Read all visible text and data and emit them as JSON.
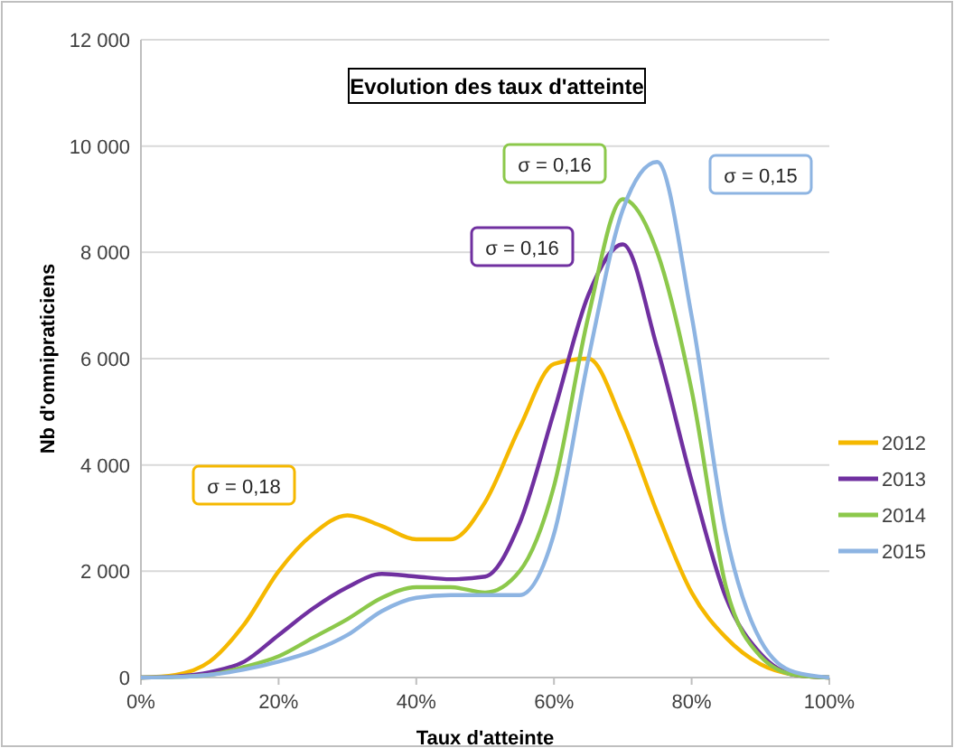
{
  "chart_data": {
    "type": "line",
    "title": "Evolution des taux d'atteinte",
    "xlabel": "Taux d'atteinte",
    "ylabel": "Nb d'omnipraticiens",
    "x": [
      0,
      5,
      10,
      15,
      20,
      25,
      30,
      35,
      40,
      45,
      50,
      55,
      60,
      65,
      70,
      75,
      80,
      85,
      90,
      95,
      100
    ],
    "series": [
      {
        "name": "2012",
        "color": "#f5b800",
        "values": [
          0,
          50,
          300,
          1000,
          2000,
          2700,
          3050,
          2850,
          2600,
          2600,
          3300,
          4700,
          5900,
          6000,
          4800,
          3100,
          1600,
          750,
          250,
          50,
          0
        ]
      },
      {
        "name": "2013",
        "color": "#7030a0",
        "values": [
          0,
          20,
          100,
          300,
          800,
          1300,
          1700,
          1950,
          1900,
          1850,
          1900,
          2900,
          5000,
          7200,
          8150,
          6200,
          3700,
          1500,
          450,
          50,
          0
        ]
      },
      {
        "name": "2014",
        "color": "#8cc84b",
        "values": [
          0,
          10,
          50,
          200,
          400,
          750,
          1100,
          1500,
          1700,
          1700,
          1600,
          2000,
          3600,
          6800,
          9000,
          8000,
          5400,
          1700,
          400,
          50,
          0
        ]
      },
      {
        "name": "2015",
        "color": "#8db4e2",
        "values": [
          0,
          10,
          50,
          150,
          300,
          500,
          800,
          1250,
          1500,
          1550,
          1550,
          1550,
          2700,
          6000,
          8800,
          9700,
          6800,
          2700,
          700,
          100,
          0
        ]
      }
    ],
    "xlim": [
      0,
      100
    ],
    "xticks": [
      {
        "value": 0,
        "label": "0%"
      },
      {
        "value": 20,
        "label": "20%"
      },
      {
        "value": 40,
        "label": "40%"
      },
      {
        "value": 60,
        "label": "60%"
      },
      {
        "value": 80,
        "label": "80%"
      },
      {
        "value": 100,
        "label": "100%"
      }
    ],
    "ylim": [
      0,
      12000
    ],
    "yticks": [
      {
        "value": 0,
        "label": "0"
      },
      {
        "value": 2000,
        "label": "2 000"
      },
      {
        "value": 4000,
        "label": "4 000"
      },
      {
        "value": 6000,
        "label": "6 000"
      },
      {
        "value": 8000,
        "label": "8 000"
      },
      {
        "value": 10000,
        "label": "10 000"
      },
      {
        "value": 12000,
        "label": "12 000"
      }
    ],
    "grid": "y",
    "legend": "right",
    "marker": "none",
    "line_style": "solid",
    "annotations": [
      "σ = 0,18",
      "σ = 0,16",
      "σ = 0,16",
      "σ = 0,15"
    ]
  }
}
